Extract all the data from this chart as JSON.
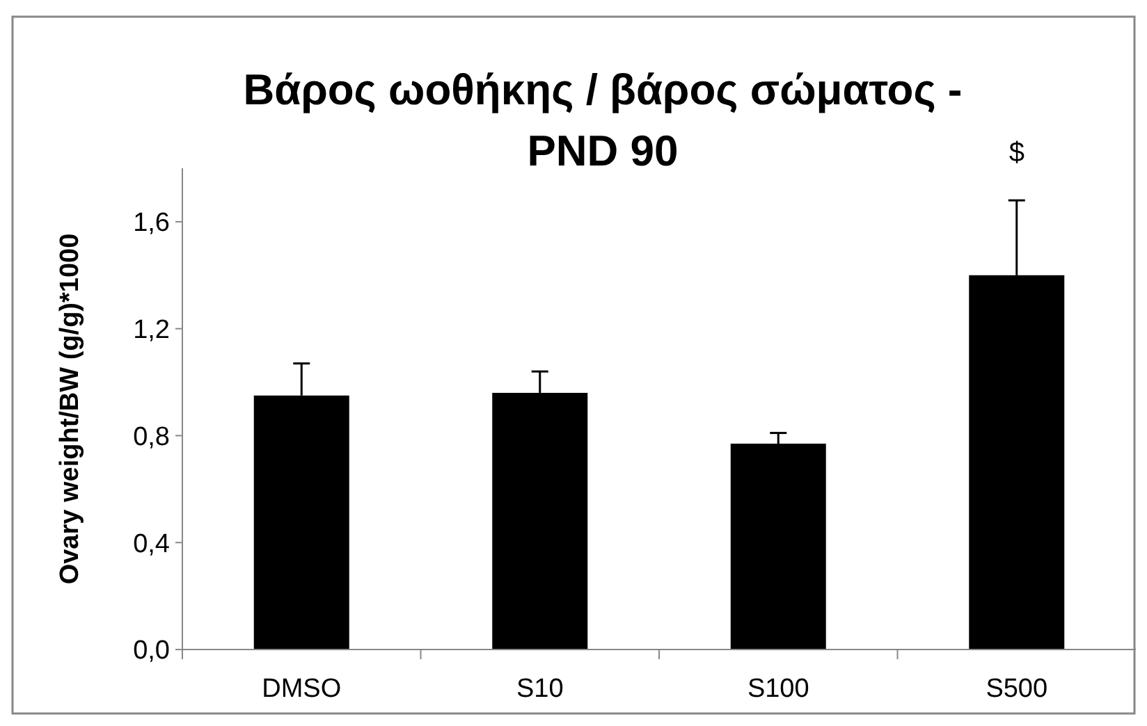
{
  "chart_data": {
    "type": "bar",
    "title": "Βάρος ωοθήκης / βάρος σώματος - PND 90",
    "ylabel": "Ovary weight/BW (g/g)*1000",
    "categories": [
      "DMSO",
      "S10",
      "S100",
      "S500"
    ],
    "values": [
      0.95,
      0.96,
      0.77,
      1.4
    ],
    "errors": [
      [
        0.95,
        1.07
      ],
      [
        0.96,
        1.04
      ],
      [
        0.77,
        0.81
      ],
      [
        1.4,
        1.68
      ]
    ],
    "color": "#000000",
    "ylim": [
      0,
      1.8
    ],
    "yticks": [
      {
        "value": 0,
        "label": "0,0"
      },
      {
        "value": 0.4,
        "label": "0,4"
      },
      {
        "value": 0.8,
        "label": "0,8"
      },
      {
        "value": 1.2,
        "label": "1,2"
      },
      {
        "value": 1.6,
        "label": "1,6"
      }
    ],
    "annotations": [
      "$"
    ],
    "grid": false
  }
}
